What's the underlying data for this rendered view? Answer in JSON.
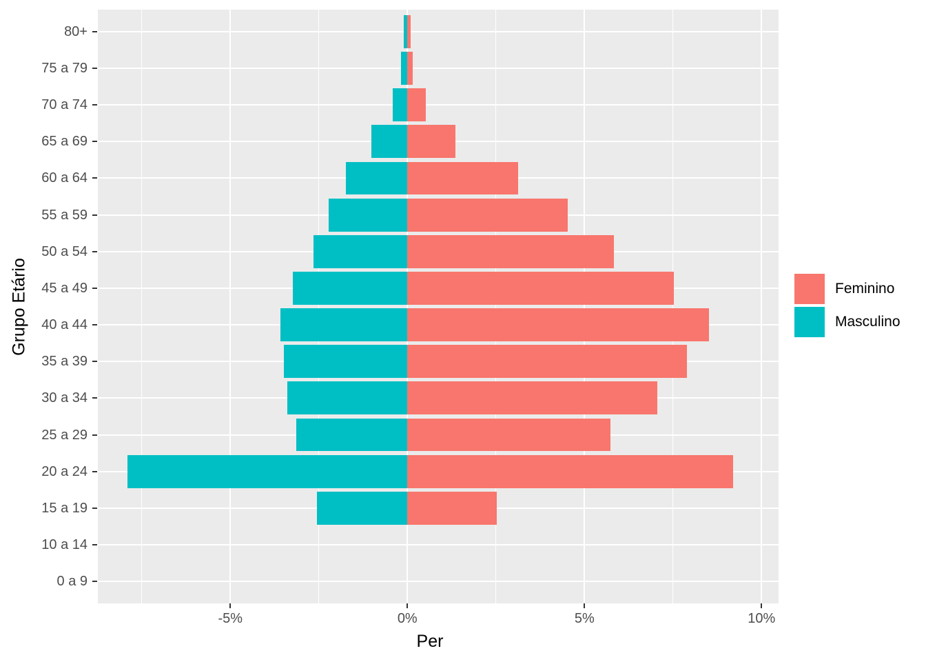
{
  "chart_data": {
    "type": "bar",
    "subtype": "population-pyramid-horizontal",
    "title": "",
    "xlabel": "Per",
    "ylabel": "Grupo Etário",
    "categories_top_to_bottom": [
      "80+",
      "75 a 79",
      "70 a 74",
      "65 a 69",
      "60 a 64",
      "55 a 59",
      "50 a 54",
      "45 a 49",
      "40 a 44",
      "35 a 39",
      "30 a 34",
      "25 a 29",
      "20 a 24",
      "15 a 19",
      "10 a 14",
      "0 a 9"
    ],
    "series": [
      {
        "name": "Masculino",
        "color": "#00BFC4",
        "side": "left",
        "values_pct": [
          -0.1,
          -0.19,
          -0.42,
          -1.02,
          -1.74,
          -2.22,
          -2.66,
          -3.24,
          -3.58,
          -3.49,
          -3.4,
          -3.14,
          -7.91,
          -2.55,
          0,
          0
        ]
      },
      {
        "name": "Feminino",
        "color": "#F8766D",
        "side": "right",
        "values_pct": [
          0.1,
          0.16,
          0.52,
          1.36,
          3.12,
          4.52,
          5.83,
          7.52,
          8.52,
          7.9,
          7.06,
          5.73,
          9.19,
          2.52,
          0,
          0
        ]
      }
    ],
    "x_ticks": [
      {
        "value": -5,
        "label": "-5%"
      },
      {
        "value": 0,
        "label": "0%"
      },
      {
        "value": 5,
        "label": "5%"
      },
      {
        "value": 10,
        "label": "10%"
      }
    ],
    "x_minor_gridlines": [
      -7.5,
      -2.5,
      2.5,
      7.5
    ],
    "xlim": [
      -8.74,
      10.48
    ],
    "grid": "on",
    "legend": {
      "position": "right",
      "entries": [
        {
          "label": "Feminino",
          "color": "#F8766D"
        },
        {
          "label": "Masculino",
          "color": "#00BFC4"
        }
      ]
    },
    "colors": {
      "panel_background": "#EBEBEB",
      "gridline": "#FFFFFF",
      "axis_text": "#4D4D4D",
      "tick_mark": "#333333",
      "axis_title": "#000000"
    }
  }
}
